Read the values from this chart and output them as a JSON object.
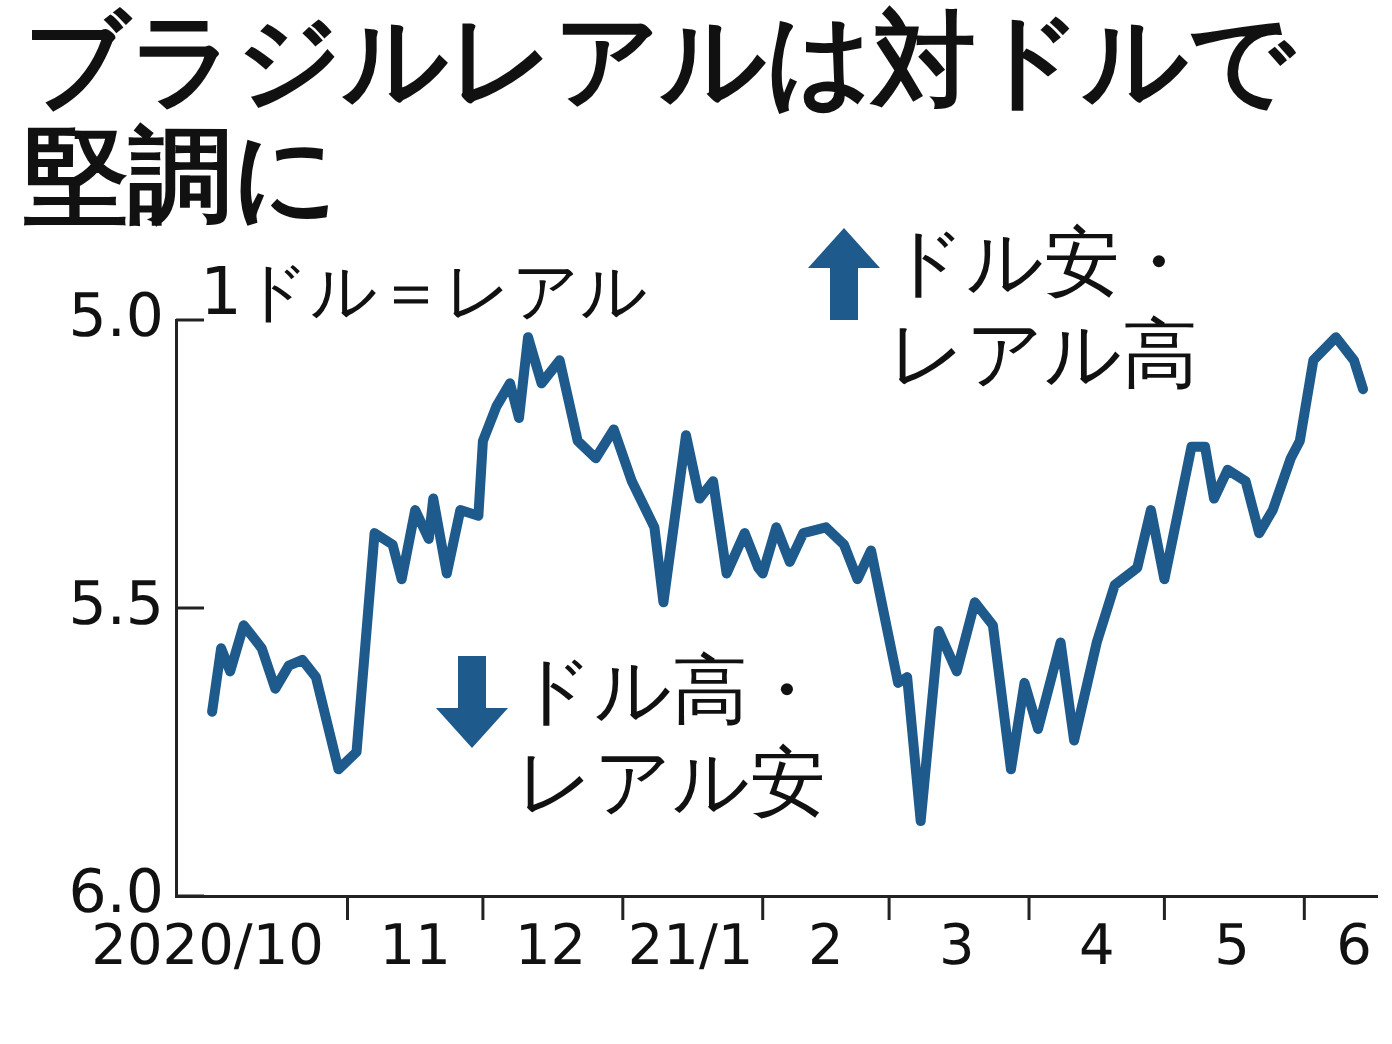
{
  "chart_data": {
    "type": "line",
    "title": "ブラジルレアルは対ドルで堅調に",
    "ylabel": "1ドル＝レアル",
    "annotations": [
      "ドル安・レアル高",
      "ドル高・レアル安"
    ],
    "x": [
      "2020-10-02",
      "2020-10-04",
      "2020-10-06",
      "2020-10-09",
      "2020-10-13",
      "2020-10-16",
      "2020-10-19",
      "2020-10-22",
      "2020-10-25",
      "2020-10-30",
      "2020-11-03",
      "2020-11-07",
      "2020-11-11",
      "2020-11-13",
      "2020-11-16",
      "2020-11-19",
      "2020-11-20",
      "2020-11-23",
      "2020-11-26",
      "2020-11-30",
      "2020-12-01",
      "2020-12-04",
      "2020-12-07",
      "2020-12-09",
      "2020-12-11",
      "2020-12-14",
      "2020-12-18",
      "2020-12-22",
      "2020-12-26",
      "2020-12-30",
      "2021-01-03",
      "2021-01-08",
      "2021-01-10",
      "2021-01-15",
      "2021-01-18",
      "2021-01-21",
      "2021-01-24",
      "2021-01-28",
      "2021-01-31",
      "2021-02-01",
      "2021-02-04",
      "2021-02-07",
      "2021-02-10",
      "2021-02-15",
      "2021-02-19",
      "2021-02-22",
      "2021-02-25",
      "2021-03-03",
      "2021-03-05",
      "2021-03-08",
      "2021-03-12",
      "2021-03-16",
      "2021-03-20",
      "2021-03-24",
      "2021-03-28",
      "2021-03-31",
      "2021-04-03",
      "2021-04-08",
      "2021-04-11",
      "2021-04-16",
      "2021-04-20",
      "2021-04-25",
      "2021-04-28",
      "2021-05-01",
      "2021-05-07",
      "2021-05-10",
      "2021-05-12",
      "2021-05-15",
      "2021-05-19",
      "2021-05-22",
      "2021-05-25",
      "2021-05-29",
      "2021-05-31",
      "2021-06-03",
      "2021-06-08",
      "2021-06-12",
      "2021-06-14"
    ],
    "series": [
      {
        "color": "#1f5a8c",
        "values": [
          5.68,
          5.57,
          5.61,
          5.53,
          5.57,
          5.64,
          5.6,
          5.59,
          5.62,
          5.78,
          5.75,
          5.37,
          5.39,
          5.45,
          5.33,
          5.38,
          5.31,
          5.44,
          5.33,
          5.34,
          5.21,
          5.15,
          5.11,
          5.17,
          5.03,
          5.11,
          5.07,
          5.21,
          5.24,
          5.19,
          5.28,
          5.36,
          5.49,
          5.2,
          5.31,
          5.28,
          5.44,
          5.37,
          5.43,
          5.44,
          5.36,
          5.42,
          5.37,
          5.36,
          5.39,
          5.45,
          5.4,
          5.63,
          5.62,
          5.87,
          5.54,
          5.61,
          5.49,
          5.53,
          5.78,
          5.63,
          5.71,
          5.56,
          5.73,
          5.56,
          5.46,
          5.43,
          5.33,
          5.45,
          5.22,
          5.22,
          5.31,
          5.26,
          5.28,
          5.37,
          5.33,
          5.24,
          5.21,
          5.07,
          5.03,
          5.07,
          5.12
        ]
      }
    ],
    "xlim": [
      "2020-09-24",
      "2021-06-17"
    ],
    "xticks": [
      {
        "value": "2020-10-01",
        "label": "2020/10"
      },
      {
        "value": "2020-11-01",
        "label": null
      },
      {
        "value": "2020-11-16",
        "label": "11"
      },
      {
        "value": "2020-12-01",
        "label": null
      },
      {
        "value": "2020-12-16",
        "label": "12"
      },
      {
        "value": "2021-01-01",
        "label": null
      },
      {
        "value": "2021-01-16",
        "label": "21/1"
      },
      {
        "value": "2021-02-01",
        "label": null
      },
      {
        "value": "2021-02-15",
        "label": "2"
      },
      {
        "value": "2021-03-01",
        "label": null
      },
      {
        "value": "2021-03-16",
        "label": "3"
      },
      {
        "value": "2021-04-01",
        "label": null
      },
      {
        "value": "2021-04-16",
        "label": "4"
      },
      {
        "value": "2021-05-01",
        "label": null
      },
      {
        "value": "2021-05-16",
        "label": "5"
      },
      {
        "value": "2021-06-01",
        "label": null
      },
      {
        "value": "2021-06-12",
        "label": "6"
      }
    ],
    "ylim": [
      6.0,
      5.0
    ],
    "yticks": [
      {
        "value": 5.0,
        "label": "5.0"
      },
      {
        "value": 5.5,
        "label": "5.5"
      },
      {
        "value": 6.0,
        "label": "6.0"
      }
    ],
    "grid": false,
    "legend": false,
    "marker": "none",
    "line_style": "solid"
  }
}
